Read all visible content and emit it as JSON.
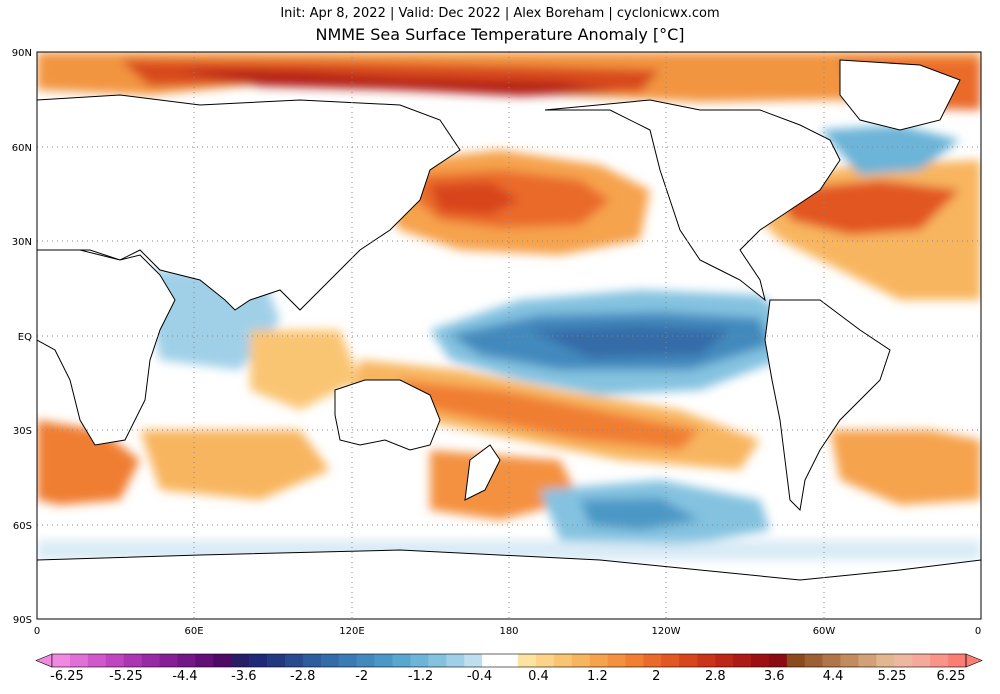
{
  "header": {
    "subtitle": "Init: Apr 8, 2022 | Valid: Dec 2022 | Alex Boreham | cyclonicwx.com",
    "title": "NMME Sea Surface Temperature Anomaly [°C]"
  },
  "map": {
    "projection": "equirectangular",
    "center_longitude": 180,
    "lat_range": [
      -90,
      90
    ],
    "lon_range": [
      0,
      360
    ],
    "gridlines": "dotted",
    "lat_labels": [
      "90N",
      "60N",
      "30N",
      "EQ",
      "30S",
      "60S",
      "90S"
    ],
    "lon_labels": [
      "0",
      "60E",
      "120E",
      "180",
      "120W",
      "60W",
      "0"
    ]
  },
  "colorbar": {
    "tick_labels": [
      "-6.25",
      "-5.25",
      "-4.4",
      "-3.6",
      "-2.8",
      "-2",
      "-1.2",
      "-0.4",
      "0.4",
      "1.2",
      "2",
      "2.8",
      "3.6",
      "4.4",
      "5.25",
      "6.25"
    ],
    "colors": [
      "#f08ae0",
      "#e070d8",
      "#d058cc",
      "#c045c0",
      "#ac36b2",
      "#982aa4",
      "#861f96",
      "#741787",
      "#621078",
      "#4f0a68",
      "#271e66",
      "#1e2a78",
      "#22397f",
      "#284b8e",
      "#2e5c9c",
      "#346ca8",
      "#3b7bb4",
      "#428abd",
      "#4b98c6",
      "#59a6cf",
      "#6cb4d8",
      "#84c2e0",
      "#a0d0e8",
      "#bfdef0",
      "#ffffff",
      "#ffffff",
      "#fce3a0",
      "#fbd48a",
      "#fac573",
      "#f8b55f",
      "#f6a34e",
      "#f4913f",
      "#f07e33",
      "#ea6a2a",
      "#e25722",
      "#d8451d",
      "#cc341a",
      "#be2618",
      "#ae1a16",
      "#9c1013",
      "#8a0c10",
      "#8b4a1e",
      "#9e5f33",
      "#b07549",
      "#c28b60",
      "#d3a177",
      "#e2b68e",
      "#eeb8a0",
      "#f5a99a",
      "#f99488",
      "#fa7e74"
    ],
    "over_color": "#fa7e74",
    "under_color": "#f08ae0"
  }
}
